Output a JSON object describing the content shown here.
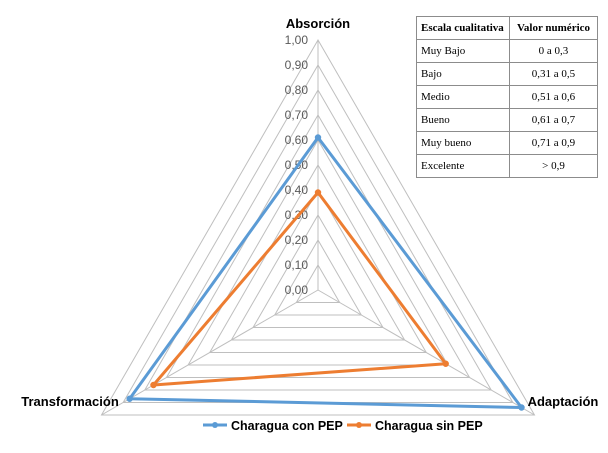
{
  "chart_data": {
    "type": "radar",
    "axes": [
      "Absorción",
      "Adaptación",
      "Transformación"
    ],
    "rlim": [
      0,
      1
    ],
    "ticks": [
      "0,00",
      "0,10",
      "0,20",
      "0,30",
      "0,40",
      "0,50",
      "0,60",
      "0,70",
      "0,80",
      "0,90",
      "1,00"
    ],
    "series": [
      {
        "name": "Charagua con PEP",
        "color": "#5b9bd5",
        "values": [
          0.61,
          0.94,
          0.87
        ]
      },
      {
        "name": "Charagua sin PEP",
        "color": "#ed7d31",
        "values": [
          0.39,
          0.59,
          0.76
        ]
      }
    ],
    "grid": true,
    "legend": "bottom"
  },
  "table": {
    "headers": [
      "Escala cualitativa",
      "Valor numérico"
    ],
    "rows": [
      [
        "Muy Bajo",
        "0 a 0,3"
      ],
      [
        "Bajo",
        "0,31 a 0,5"
      ],
      [
        "Medio",
        "0,51 a 0,6"
      ],
      [
        "Bueno",
        "0,61 a 0,7"
      ],
      [
        "Muy bueno",
        "0,71 a 0,9"
      ],
      [
        "Excelente",
        "> 0,9"
      ]
    ]
  }
}
